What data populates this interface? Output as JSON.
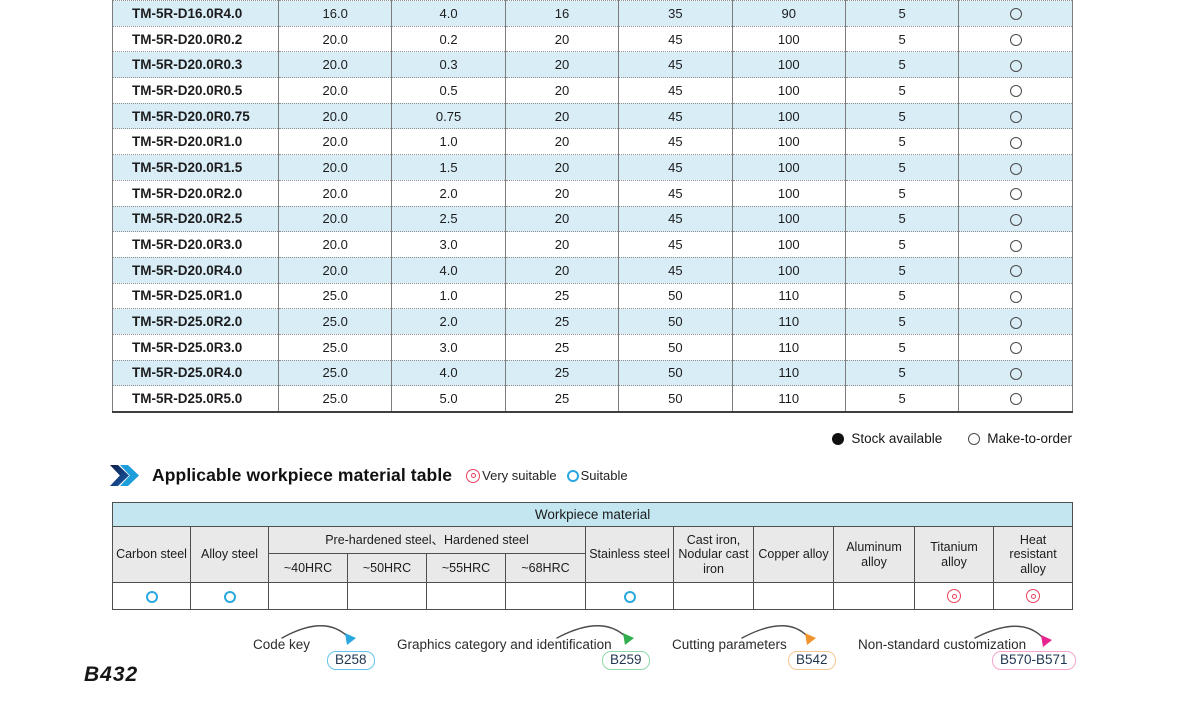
{
  "spec_table": {
    "rows": [
      {
        "model": "TM-5R-D16.0R4.0",
        "values": [
          "16.0",
          "4.0",
          "16",
          "35",
          "90",
          "5"
        ],
        "stock": "make-to-order"
      },
      {
        "model": "TM-5R-D20.0R0.2",
        "values": [
          "20.0",
          "0.2",
          "20",
          "45",
          "100",
          "5"
        ],
        "stock": "make-to-order"
      },
      {
        "model": "TM-5R-D20.0R0.3",
        "values": [
          "20.0",
          "0.3",
          "20",
          "45",
          "100",
          "5"
        ],
        "stock": "make-to-order"
      },
      {
        "model": "TM-5R-D20.0R0.5",
        "values": [
          "20.0",
          "0.5",
          "20",
          "45",
          "100",
          "5"
        ],
        "stock": "make-to-order"
      },
      {
        "model": "TM-5R-D20.0R0.75",
        "values": [
          "20.0",
          "0.75",
          "20",
          "45",
          "100",
          "5"
        ],
        "stock": "make-to-order"
      },
      {
        "model": "TM-5R-D20.0R1.0",
        "values": [
          "20.0",
          "1.0",
          "20",
          "45",
          "100",
          "5"
        ],
        "stock": "make-to-order"
      },
      {
        "model": "TM-5R-D20.0R1.5",
        "values": [
          "20.0",
          "1.5",
          "20",
          "45",
          "100",
          "5"
        ],
        "stock": "make-to-order"
      },
      {
        "model": "TM-5R-D20.0R2.0",
        "values": [
          "20.0",
          "2.0",
          "20",
          "45",
          "100",
          "5"
        ],
        "stock": "make-to-order"
      },
      {
        "model": "TM-5R-D20.0R2.5",
        "values": [
          "20.0",
          "2.5",
          "20",
          "45",
          "100",
          "5"
        ],
        "stock": "make-to-order"
      },
      {
        "model": "TM-5R-D20.0R3.0",
        "values": [
          "20.0",
          "3.0",
          "20",
          "45",
          "100",
          "5"
        ],
        "stock": "make-to-order"
      },
      {
        "model": "TM-5R-D20.0R4.0",
        "values": [
          "20.0",
          "4.0",
          "20",
          "45",
          "100",
          "5"
        ],
        "stock": "make-to-order"
      },
      {
        "model": "TM-5R-D25.0R1.0",
        "values": [
          "25.0",
          "1.0",
          "25",
          "50",
          "110",
          "5"
        ],
        "stock": "make-to-order"
      },
      {
        "model": "TM-5R-D25.0R2.0",
        "values": [
          "25.0",
          "2.0",
          "25",
          "50",
          "110",
          "5"
        ],
        "stock": "make-to-order"
      },
      {
        "model": "TM-5R-D25.0R3.0",
        "values": [
          "25.0",
          "3.0",
          "25",
          "50",
          "110",
          "5"
        ],
        "stock": "make-to-order"
      },
      {
        "model": "TM-5R-D25.0R4.0",
        "values": [
          "25.0",
          "4.0",
          "25",
          "50",
          "110",
          "5"
        ],
        "stock": "make-to-order"
      },
      {
        "model": "TM-5R-D25.0R5.0",
        "values": [
          "25.0",
          "5.0",
          "25",
          "50",
          "110",
          "5"
        ],
        "stock": "make-to-order"
      }
    ],
    "legend": {
      "stock_available": "Stock available",
      "make_to_order": "Make-to-order"
    }
  },
  "material_section": {
    "title": "Applicable workpiece material table",
    "very_suitable_label": "Very suitable",
    "suitable_label": "Suitable",
    "table": {
      "header": "Workpiece material",
      "group_header": "Pre-hardened steel、Hardened steel",
      "columns": [
        "Carbon steel",
        "Alloy steel",
        "~40HRC",
        "~50HRC",
        "~55HRC",
        "~68HRC",
        "Stainless steel",
        "Cast iron, Nodular cast iron",
        "Copper alloy",
        "Aluminum alloy",
        "Titanium alloy",
        "Heat resistant alloy"
      ],
      "ratings": [
        "suitable",
        "suitable",
        "",
        "",
        "",
        "",
        "suitable",
        "",
        "",
        "",
        "very-suitable",
        "very-suitable"
      ]
    }
  },
  "footer": {
    "annotations": [
      {
        "label": "Code key",
        "ref": "B258",
        "color": "#62c4ec",
        "arrow_color": "#29a8e0"
      },
      {
        "label": "Graphics category and identification",
        "ref": "B259",
        "color": "#8fd6a8",
        "arrow_color": "#2faf4e"
      },
      {
        "label": "Cutting parameters",
        "ref": "B542",
        "color": "#f6c892",
        "arrow_color": "#f0922e"
      },
      {
        "label": "Non-standard customization",
        "ref": "B570-B571",
        "color": "#f4a6cc",
        "arrow_color": "#e8258e"
      }
    ],
    "page_number": "B432"
  }
}
